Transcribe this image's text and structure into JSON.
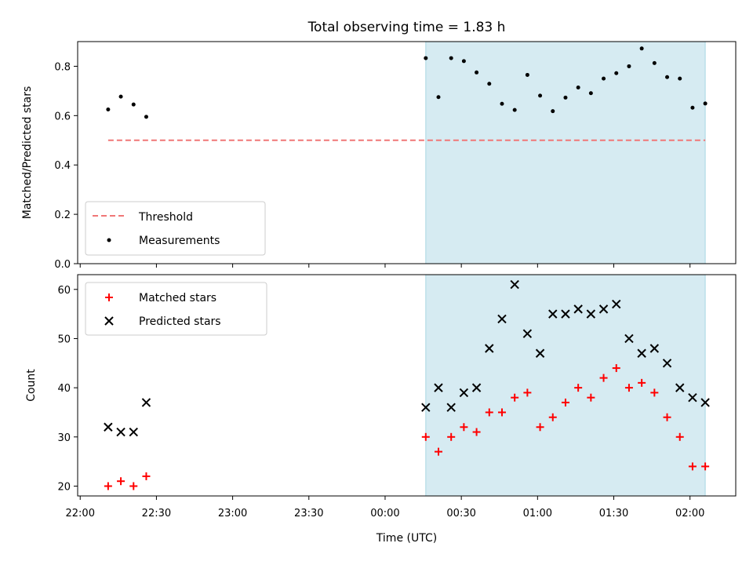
{
  "chart_data": [
    {
      "type": "scatter",
      "title": "Total observing time = 1.83 h",
      "ylabel": "Matched/Predicted stars",
      "ylim": [
        0,
        0.9
      ],
      "yticks": [
        "0.0",
        "0.2",
        "0.4",
        "0.6",
        "0.8"
      ],
      "legend_position": "bottom-left",
      "threshold": {
        "name": "Threshold",
        "value": 0.5,
        "x_start": "22:11",
        "x_end": "02:06",
        "color": "#f07777"
      },
      "series": [
        {
          "name": "Measurements",
          "color": "#000000",
          "x": [
            "22:11",
            "22:16",
            "22:21",
            "22:26",
            "00:16",
            "00:21",
            "00:26",
            "00:31",
            "00:36",
            "00:41",
            "00:46",
            "00:51",
            "00:56",
            "01:01",
            "01:06",
            "01:11",
            "01:16",
            "01:21",
            "01:26",
            "01:31",
            "01:36",
            "01:41",
            "01:46",
            "01:51",
            "01:56",
            "02:01",
            "02:06"
          ],
          "y": [
            0.625,
            0.677,
            0.645,
            0.595,
            0.833,
            0.675,
            0.833,
            0.821,
            0.775,
            0.729,
            0.648,
            0.623,
            0.765,
            0.681,
            0.618,
            0.673,
            0.714,
            0.691,
            0.75,
            0.772,
            0.8,
            0.872,
            0.813,
            0.756,
            0.75,
            0.632,
            0.649
          ]
        }
      ]
    },
    {
      "type": "scatter",
      "title": "",
      "xlabel": "Time (UTC)",
      "ylabel": "Count",
      "ylim": [
        18,
        63
      ],
      "yticks": [
        "20",
        "30",
        "40",
        "50",
        "60"
      ],
      "xticks": [
        "22:00",
        "22:30",
        "23:00",
        "23:30",
        "00:00",
        "00:30",
        "01:00",
        "01:30",
        "02:00"
      ],
      "legend_position": "top-left",
      "series": [
        {
          "name": "Matched stars",
          "marker": "+",
          "color": "#ff0000",
          "x": [
            "22:11",
            "22:16",
            "22:21",
            "22:26",
            "00:16",
            "00:21",
            "00:26",
            "00:31",
            "00:36",
            "00:41",
            "00:46",
            "00:51",
            "00:56",
            "01:01",
            "01:06",
            "01:11",
            "01:16",
            "01:21",
            "01:26",
            "01:31",
            "01:36",
            "01:41",
            "01:46",
            "01:51",
            "01:56",
            "02:01",
            "02:06"
          ],
          "y": [
            20,
            21,
            20,
            22,
            30,
            27,
            30,
            32,
            31,
            35,
            35,
            38,
            39,
            32,
            34,
            37,
            40,
            38,
            42,
            44,
            40,
            41,
            39,
            34,
            30,
            24,
            24
          ]
        },
        {
          "name": "Predicted stars",
          "marker": "x",
          "color": "#000000",
          "x": [
            "22:11",
            "22:16",
            "22:21",
            "22:26",
            "00:16",
            "00:21",
            "00:26",
            "00:31",
            "00:36",
            "00:41",
            "00:46",
            "00:51",
            "00:56",
            "01:01",
            "01:06",
            "01:11",
            "01:16",
            "01:21",
            "01:26",
            "01:31",
            "01:36",
            "01:41",
            "01:46",
            "01:51",
            "01:56",
            "02:01",
            "02:06"
          ],
          "y": [
            32,
            31,
            31,
            37,
            36,
            40,
            36,
            39,
            40,
            48,
            54,
            61,
            51,
            47,
            55,
            55,
            56,
            55,
            56,
            57,
            50,
            47,
            48,
            45,
            40,
            38,
            37
          ]
        }
      ]
    }
  ],
  "shared_x": {
    "range": [
      "21:59",
      "02:18"
    ],
    "span_start": "00:16",
    "span_end": "02:06",
    "span_color": "#add8e6"
  }
}
